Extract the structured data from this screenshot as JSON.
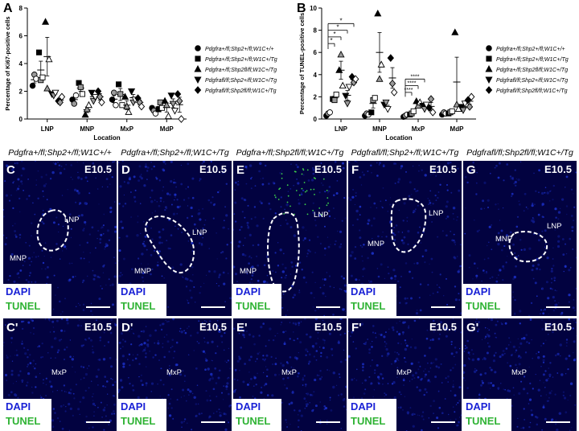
{
  "chart_data": [
    {
      "panel": "A",
      "type": "scatter",
      "ylabel": "Percentage of Ki67-positive cells",
      "xlabel": "Location",
      "categories": [
        "LNP",
        "MNP",
        "MxP",
        "MdP"
      ],
      "ylim": [
        0,
        8
      ],
      "yticks": [
        0,
        2,
        4,
        6,
        8
      ],
      "series": [
        {
          "name": "Pdgfra+/fl;Shp2+/fl;W1C+/+",
          "symbol": "circle-filled",
          "points": {
            "LNP": [
              2.4,
              3.2,
              2.9
            ],
            "MNP": [
              1.4,
              1.1,
              1.7
            ],
            "MxP": [
              1.4,
              1.9,
              1.0
            ],
            "MdP": [
              0.8,
              0.6,
              0.4
            ]
          }
        },
        {
          "name": "Pdgfra+/fl;Shp2+/fl;W1C+/Tg",
          "symbol": "square-filled",
          "points": {
            "LNP": [
              4.8,
              2.8,
              3.0
            ],
            "MNP": [
              2.6,
              2.3,
              1.8
            ],
            "MxP": [
              2.5,
              1.8,
              1.0
            ],
            "MdP": [
              0.7,
              1.2,
              0.8
            ]
          }
        },
        {
          "name": "Pdgfra+/fl;Shp2fl/fl;W1C+/Tg",
          "symbol": "triangle-up",
          "points": {
            "LNP": [
              7.0,
              2.2,
              4.3
            ],
            "MNP": [
              0.3,
              0.7,
              1.0
            ],
            "MxP": [
              1.6,
              0.9,
              0.5
            ],
            "MdP": [
              1.3,
              1.0,
              0.2
            ]
          }
        },
        {
          "name": "Pdgfrafl/fl;Shp2+/fl;W1C+/Tg",
          "symbol": "triangle-down",
          "points": {
            "LNP": [
              1.8,
              1.7,
              1.9
            ],
            "MNP": [
              1.9,
              1.3,
              1.6
            ],
            "MxP": [
              2.0,
              1.2,
              1.4
            ],
            "MdP": [
              1.7,
              1.1,
              0.6
            ]
          }
        },
        {
          "name": "Pdgfrafl/fl;Shp2fl/fl;W1C+/Tg",
          "symbol": "diamond",
          "points": {
            "LNP": [
              1.3,
              1.2,
              1.6
            ],
            "MNP": [
              2.0,
              1.6,
              1.2
            ],
            "MxP": [
              1.5,
              1.2,
              0.9
            ],
            "MdP": [
              1.8,
              1.3,
              0.0
            ]
          }
        }
      ]
    },
    {
      "panel": "B",
      "type": "scatter",
      "ylabel": "Percentage of TUNEL-positive cells",
      "xlabel": "Location",
      "categories": [
        "LNP",
        "MNP",
        "MxP",
        "MdP"
      ],
      "ylim": [
        0,
        10
      ],
      "yticks": [
        0,
        2,
        4,
        6,
        8,
        10
      ],
      "annotations": [
        "*",
        "*",
        "*",
        "*",
        "****",
        "****",
        "****"
      ],
      "series": [
        {
          "name": "Pdgfra+/fl;Shp2+/fl;W1C+/+",
          "symbol": "circle-filled",
          "points": {
            "LNP": [
              0.3,
              0.5,
              0.6
            ],
            "MNP": [
              0.3,
              0.5,
              0.4
            ],
            "MxP": [
              0.2,
              0.3,
              0.4
            ],
            "MdP": [
              0.4,
              0.6,
              0.5
            ]
          }
        },
        {
          "name": "Pdgfra+/fl;Shp2+/fl;W1C+/Tg",
          "symbol": "square-filled",
          "points": {
            "LNP": [
              1.8,
              1.7,
              2.2
            ],
            "MNP": [
              0.6,
              1.7,
              1.9
            ],
            "MxP": [
              0.4,
              0.5,
              0.7
            ],
            "MdP": [
              0.5,
              0.6,
              0.7
            ]
          }
        },
        {
          "name": "Pdgfra+/fl;Shp2fl/fl;W1C+/Tg",
          "symbol": "triangle-up",
          "points": {
            "LNP": [
              4.4,
              5.8,
              3.0
            ],
            "MNP": [
              9.5,
              3.6,
              4.9
            ],
            "MxP": [
              1.6,
              1.2,
              1.5
            ],
            "MdP": [
              7.8,
              1.3,
              0.9
            ]
          }
        },
        {
          "name": "Pdgfrafl/fl;Shp2+/fl;W1C+/Tg",
          "symbol": "triangle-down",
          "points": {
            "LNP": [
              2.1,
              1.4,
              2.9
            ],
            "MNP": [
              1.3,
              1.5,
              0.9
            ],
            "MxP": [
              1.2,
              0.9,
              1.3
            ],
            "MdP": [
              1.1,
              0.8,
              1.4
            ]
          }
        },
        {
          "name": "Pdgfrafl/fl;Shp2fl/fl;W1C+/Tg",
          "symbol": "diamond",
          "points": {
            "LNP": [
              3.8,
              3.3,
              3.6
            ],
            "MNP": [
              5.5,
              3.2,
              2.4
            ],
            "MxP": [
              1.0,
              1.8,
              0.6
            ],
            "MdP": [
              1.7,
              1.1,
              2.0
            ]
          }
        }
      ]
    }
  ],
  "panels": [
    {
      "header": "Pdgfra+/fl;Shp2+/fl;W1C+/+",
      "top_letter": "C",
      "bottom_letter": "C'",
      "stage": "E10.5",
      "top_regions": [
        "LNP",
        "MNP"
      ],
      "bottom_region": "MxP"
    },
    {
      "header": "Pdgfra+/fl;Shp2+/fl;W1C+/Tg",
      "top_letter": "D",
      "bottom_letter": "D'",
      "stage": "E10.5",
      "top_regions": [
        "LNP",
        "MNP"
      ],
      "bottom_region": "MxP"
    },
    {
      "header": "Pdgfra+/fl;Shp2fl/fl;W1C+/Tg",
      "top_letter": "E",
      "bottom_letter": "E'",
      "stage": "E10.5",
      "top_regions": [
        "LNP",
        "MNP"
      ],
      "bottom_region": "MxP"
    },
    {
      "header": "Pdgfrafl/fl;Shp2+/fl;W1C+/Tg",
      "top_letter": "F",
      "bottom_letter": "F'",
      "stage": "E10.5",
      "top_regions": [
        "LNP",
        "MNP"
      ],
      "bottom_region": "MxP"
    },
    {
      "header": "Pdgfrafl/fl;Shp2fl/fl;W1C+/Tg",
      "top_letter": "G",
      "bottom_letter": "G'",
      "stage": "E10.5",
      "top_regions": [
        "LNP",
        "MNP"
      ],
      "bottom_region": "MxP"
    }
  ],
  "stain_legend": {
    "dapi": "DAPI",
    "tunel": "TUNEL",
    "dapi_color": "#1a22d6",
    "tunel_color": "#2fb334"
  },
  "panel_letters": {
    "a": "A",
    "b": "B"
  }
}
